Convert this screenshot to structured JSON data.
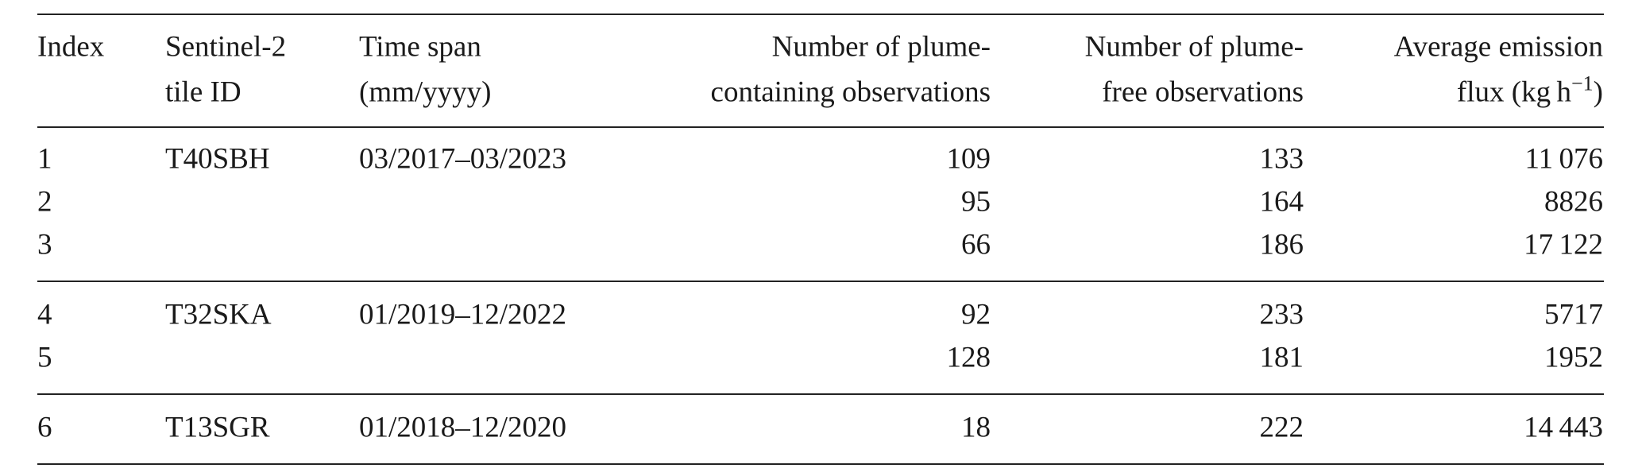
{
  "table": {
    "header": [
      {
        "lines": [
          "Index"
        ]
      },
      {
        "lines": [
          "Sentinel-2",
          "tile ID"
        ]
      },
      {
        "lines": [
          "Time span",
          "(mm/yyyy)"
        ]
      },
      {
        "lines": [
          "Number of plume-",
          "containing observations"
        ]
      },
      {
        "lines": [
          "Number of plume-",
          "free observations"
        ]
      },
      {
        "lines": [
          "Average emission",
          "flux (kg h"
        ],
        "sup": "−1",
        "close": ")"
      }
    ],
    "groups": [
      {
        "rows": [
          {
            "index": "1",
            "tile": "T40SBH",
            "time_span": "03/2017–03/2023",
            "plume_containing": "109",
            "plume_free": "133",
            "flux": "11 076"
          },
          {
            "index": "2",
            "plume_containing": "95",
            "plume_free": "164",
            "flux": "8826"
          },
          {
            "index": "3",
            "plume_containing": "66",
            "plume_free": "186",
            "flux": "17 122"
          }
        ]
      },
      {
        "rows": [
          {
            "index": "4",
            "tile": "T32SKA",
            "time_span": "01/2019–12/2022",
            "plume_containing": "92",
            "plume_free": "233",
            "flux": "5717"
          },
          {
            "index": "5",
            "plume_containing": "128",
            "plume_free": "181",
            "flux": "1952"
          }
        ]
      },
      {
        "rows": [
          {
            "index": "6",
            "tile": "T13SGR",
            "time_span": "01/2018–12/2020",
            "plume_containing": "18",
            "plume_free": "222",
            "flux": "14 443"
          }
        ]
      }
    ]
  }
}
